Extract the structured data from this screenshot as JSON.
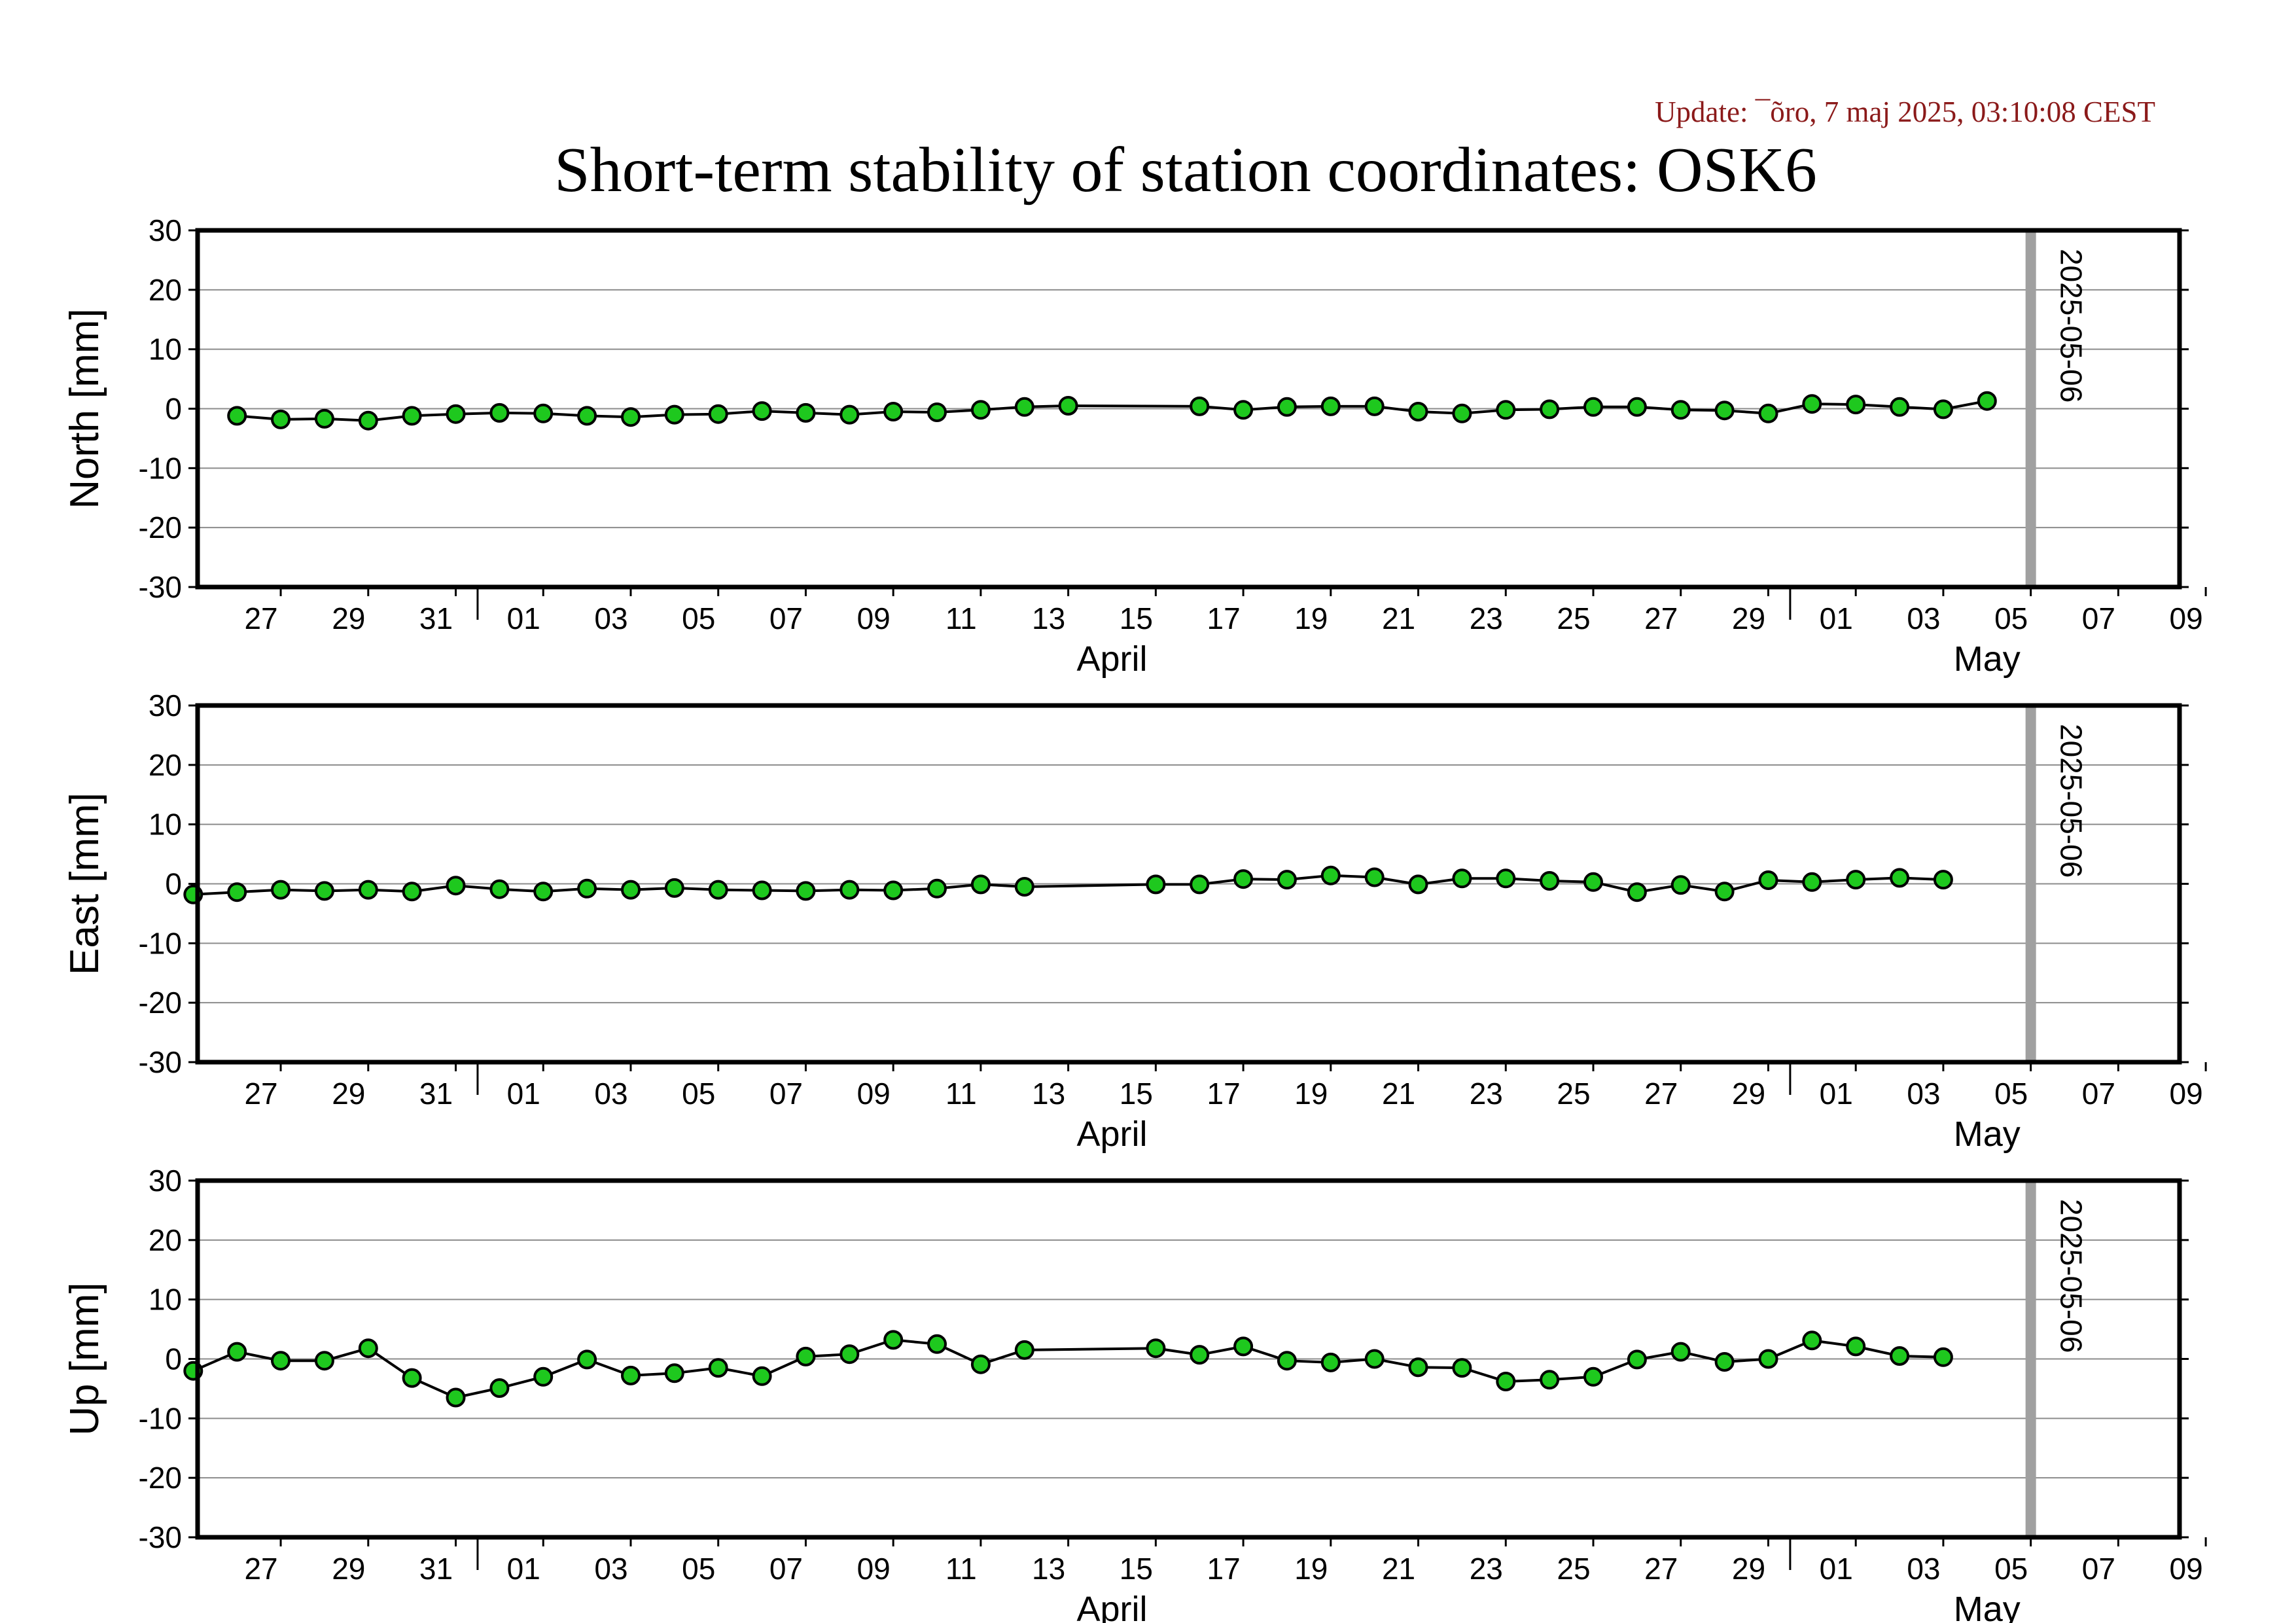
{
  "header": {
    "update_text": "Update: ¯õro, 7 maj 2025, 03:10:08 CEST",
    "title": "Short-term stability of station coordinates: OSK6"
  },
  "chart_data": [
    {
      "type": "line",
      "ylabel": "North [mm]",
      "ylim": [
        -30,
        30
      ],
      "yticks": [
        -30,
        -20,
        -10,
        0,
        10,
        20,
        30
      ],
      "grid": true,
      "x_range": [
        "2025-03-25",
        "2025-05-10"
      ],
      "x_tick_labels": [
        "27",
        "29",
        "31",
        "01",
        "03",
        "05",
        "07",
        "09",
        "11",
        "13",
        "15",
        "17",
        "19",
        "21",
        "23",
        "25",
        "27",
        "29",
        "01",
        "03",
        "05",
        "07",
        "09"
      ],
      "month_labels": [
        {
          "text": "April",
          "date": "2025-04-15"
        },
        {
          "text": "May",
          "date": "2025-05-05"
        }
      ],
      "vertical_marker": {
        "date": "2025-05-06",
        "label": "2025-05-06",
        "color": "#a0a0a0"
      },
      "series": [
        {
          "marker_color": "#1ec81e",
          "x": [
            "2025-03-26",
            "2025-03-27",
            "2025-03-28",
            "2025-03-29",
            "2025-03-30",
            "2025-03-31",
            "2025-04-01",
            "2025-04-02",
            "2025-04-03",
            "2025-04-04",
            "2025-04-05",
            "2025-04-06",
            "2025-04-07",
            "2025-04-08",
            "2025-04-09",
            "2025-04-10",
            "2025-04-11",
            "2025-04-12",
            "2025-04-13",
            "2025-04-14",
            "2025-04-17",
            "2025-04-18",
            "2025-04-19",
            "2025-04-20",
            "2025-04-21",
            "2025-04-22",
            "2025-04-23",
            "2025-04-24",
            "2025-04-25",
            "2025-04-26",
            "2025-04-27",
            "2025-04-28",
            "2025-04-29",
            "2025-04-30",
            "2025-05-01",
            "2025-05-02",
            "2025-05-03",
            "2025-05-04",
            "2025-05-05"
          ],
          "y": [
            -1.2,
            -1.8,
            -1.7,
            -2.0,
            -1.2,
            -0.9,
            -0.7,
            -0.8,
            -1.2,
            -1.4,
            -1.0,
            -0.9,
            -0.4,
            -0.7,
            -1.0,
            -0.5,
            -0.6,
            -0.2,
            0.3,
            0.5,
            0.4,
            -0.2,
            0.3,
            0.4,
            0.4,
            -0.5,
            -0.8,
            -0.2,
            -0.1,
            0.3,
            0.3,
            -0.2,
            -0.3,
            -0.8,
            0.8,
            0.7,
            0.3,
            -0.1,
            1.3
          ]
        }
      ]
    },
    {
      "type": "line",
      "ylabel": "East [mm]",
      "ylim": [
        -30,
        30
      ],
      "yticks": [
        -30,
        -20,
        -10,
        0,
        10,
        20,
        30
      ],
      "grid": true,
      "x_range": [
        "2025-03-25",
        "2025-05-10"
      ],
      "x_tick_labels": [
        "27",
        "29",
        "31",
        "01",
        "03",
        "05",
        "07",
        "09",
        "11",
        "13",
        "15",
        "17",
        "19",
        "21",
        "23",
        "25",
        "27",
        "29",
        "01",
        "03",
        "05",
        "07",
        "09"
      ],
      "month_labels": [
        {
          "text": "April",
          "date": "2025-04-15"
        },
        {
          "text": "May",
          "date": "2025-05-05"
        }
      ],
      "vertical_marker": {
        "date": "2025-05-06",
        "label": "2025-05-06",
        "color": "#a0a0a0"
      },
      "series": [
        {
          "marker_color": "#1ec81e",
          "x": [
            "2025-03-25",
            "2025-03-26",
            "2025-03-27",
            "2025-03-28",
            "2025-03-29",
            "2025-03-30",
            "2025-03-31",
            "2025-04-01",
            "2025-04-02",
            "2025-04-03",
            "2025-04-04",
            "2025-04-05",
            "2025-04-06",
            "2025-04-07",
            "2025-04-08",
            "2025-04-09",
            "2025-04-10",
            "2025-04-11",
            "2025-04-12",
            "2025-04-13",
            "2025-04-16",
            "2025-04-17",
            "2025-04-18",
            "2025-04-19",
            "2025-04-20",
            "2025-04-21",
            "2025-04-22",
            "2025-04-23",
            "2025-04-24",
            "2025-04-25",
            "2025-04-26",
            "2025-04-27",
            "2025-04-28",
            "2025-04-29",
            "2025-04-30",
            "2025-05-01",
            "2025-05-02",
            "2025-05-03",
            "2025-05-04"
          ],
          "y": [
            -1.8,
            -1.4,
            -1.0,
            -1.2,
            -1.0,
            -1.3,
            -0.3,
            -0.9,
            -1.3,
            -0.8,
            -1.0,
            -0.7,
            -1.0,
            -1.1,
            -1.2,
            -1.0,
            -1.1,
            -0.8,
            -0.1,
            -0.5,
            -0.1,
            -0.1,
            0.8,
            0.7,
            1.4,
            1.1,
            -0.1,
            0.9,
            0.9,
            0.5,
            0.3,
            -1.4,
            -0.2,
            -1.3,
            0.6,
            0.3,
            0.7,
            1.0,
            0.7
          ]
        }
      ]
    },
    {
      "type": "line",
      "ylabel": "Up [mm]",
      "ylim": [
        -30,
        30
      ],
      "yticks": [
        -30,
        -20,
        -10,
        0,
        10,
        20,
        30
      ],
      "grid": true,
      "x_range": [
        "2025-03-25",
        "2025-05-10"
      ],
      "x_tick_labels": [
        "27",
        "29",
        "31",
        "01",
        "03",
        "05",
        "07",
        "09",
        "11",
        "13",
        "15",
        "17",
        "19",
        "21",
        "23",
        "25",
        "27",
        "29",
        "01",
        "03",
        "05",
        "07",
        "09"
      ],
      "month_labels": [
        {
          "text": "April",
          "date": "2025-04-15"
        },
        {
          "text": "May",
          "date": "2025-05-05"
        }
      ],
      "vertical_marker": {
        "date": "2025-05-06",
        "label": "2025-05-06",
        "color": "#a0a0a0"
      },
      "series": [
        {
          "marker_color": "#1ec81e",
          "x": [
            "2025-03-25",
            "2025-03-26",
            "2025-03-27",
            "2025-03-28",
            "2025-03-29",
            "2025-03-30",
            "2025-03-31",
            "2025-04-01",
            "2025-04-02",
            "2025-04-03",
            "2025-04-04",
            "2025-04-05",
            "2025-04-06",
            "2025-04-07",
            "2025-04-08",
            "2025-04-09",
            "2025-04-10",
            "2025-04-11",
            "2025-04-12",
            "2025-04-13",
            "2025-04-16",
            "2025-04-17",
            "2025-04-18",
            "2025-04-19",
            "2025-04-20",
            "2025-04-21",
            "2025-04-22",
            "2025-04-23",
            "2025-04-24",
            "2025-04-25",
            "2025-04-26",
            "2025-04-27",
            "2025-04-28",
            "2025-04-29",
            "2025-04-30",
            "2025-05-01",
            "2025-05-02",
            "2025-05-03",
            "2025-05-04"
          ],
          "y": [
            -2.0,
            1.2,
            -0.3,
            -0.3,
            1.8,
            -3.2,
            -6.5,
            -4.9,
            -3.0,
            -0.1,
            -2.8,
            -2.4,
            -1.5,
            -2.9,
            0.4,
            0.8,
            3.2,
            2.5,
            -0.9,
            1.5,
            1.8,
            0.7,
            2.1,
            -0.3,
            -0.6,
            0.0,
            -1.4,
            -1.5,
            -3.8,
            -3.5,
            -3.0,
            -0.1,
            1.2,
            -0.5,
            0.0,
            3.1,
            2.1,
            0.5,
            0.3
          ]
        }
      ]
    }
  ]
}
